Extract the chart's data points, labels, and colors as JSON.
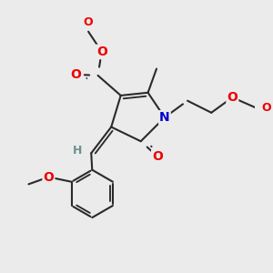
{
  "bg_color": "#ebebeb",
  "bond_color": "#2a2a2a",
  "bond_width": 1.5,
  "atom_colors": {
    "O": "#ee0000",
    "N": "#0000cc",
    "C": "#2a2a2a",
    "H": "#6a9090"
  },
  "font_size_atom": 10,
  "font_size_small": 8.5,
  "xlim": [
    -2.5,
    2.8
  ],
  "ylim": [
    -2.8,
    2.4
  ]
}
